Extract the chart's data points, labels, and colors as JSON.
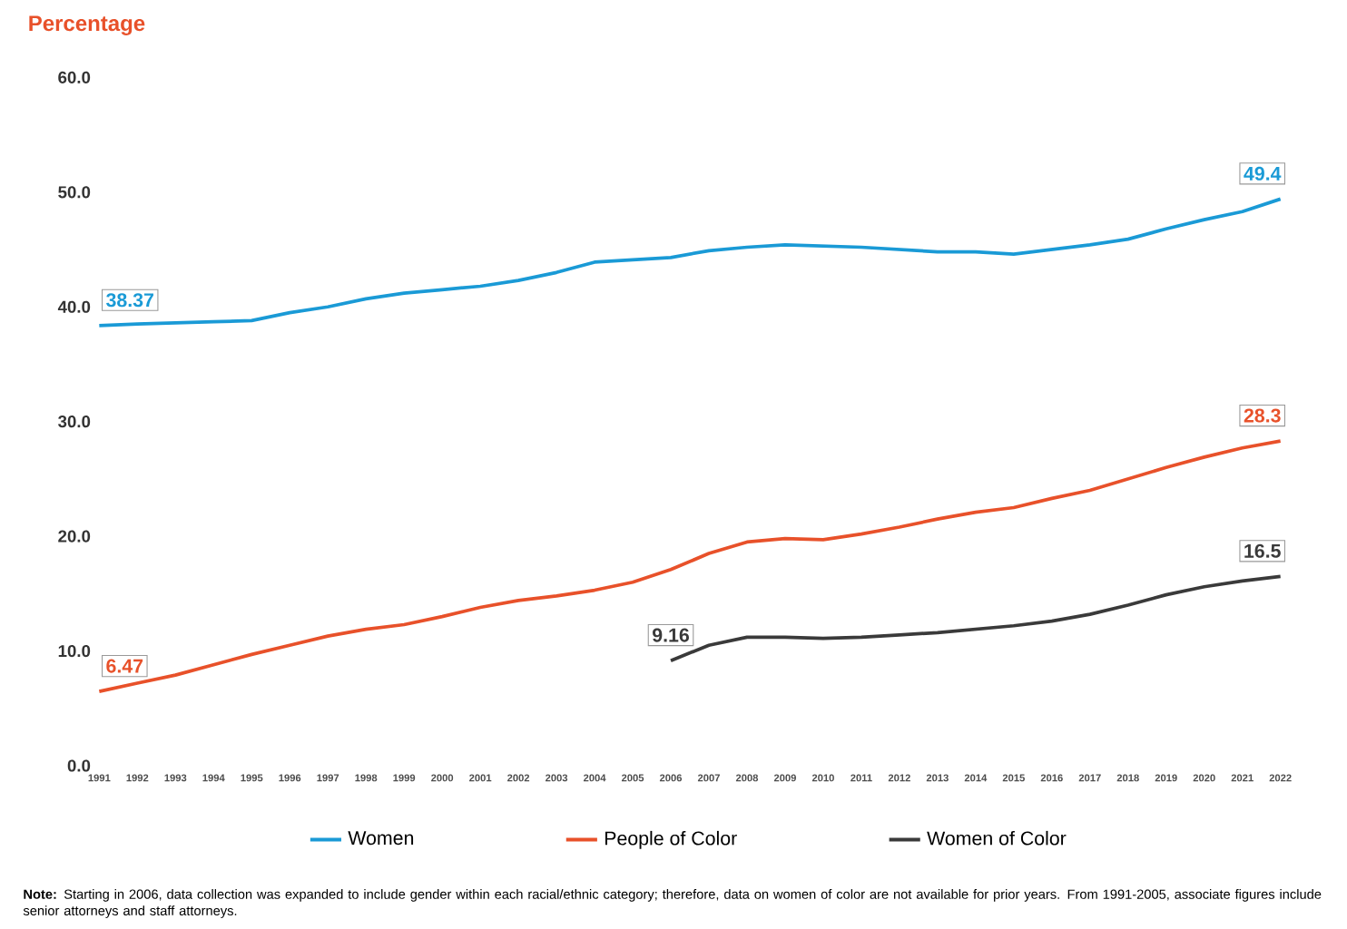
{
  "chart_data": {
    "type": "line",
    "ylabel": "Percentage",
    "categories": [
      "1991",
      "1992",
      "1993",
      "1994",
      "1995",
      "1996",
      "1997",
      "1998",
      "1999",
      "2000",
      "2001",
      "2002",
      "2003",
      "2004",
      "2005",
      "2006",
      "2007",
      "2008",
      "2009",
      "2010",
      "2011",
      "2012",
      "2013",
      "2014",
      "2015",
      "2016",
      "2017",
      "2018",
      "2019",
      "2020",
      "2021",
      "2022"
    ],
    "series": [
      {
        "name": "Women",
        "color": "#1a9ad6",
        "values": [
          38.37,
          38.5,
          38.6,
          38.7,
          38.8,
          39.5,
          40.0,
          40.7,
          41.2,
          41.5,
          41.8,
          42.3,
          43.0,
          43.9,
          44.1,
          44.3,
          44.9,
          45.2,
          45.4,
          45.3,
          45.2,
          45.0,
          44.8,
          44.8,
          44.6,
          45.0,
          45.4,
          45.9,
          46.8,
          47.6,
          48.3,
          49.4
        ],
        "value_labels": [
          "38.37",
          null,
          null,
          null,
          null,
          null,
          null,
          null,
          null,
          null,
          null,
          null,
          null,
          null,
          null,
          null,
          null,
          null,
          null,
          null,
          null,
          null,
          null,
          null,
          null,
          null,
          null,
          null,
          null,
          null,
          null,
          "49.4"
        ]
      },
      {
        "name": "People of Color",
        "color": "#e8512a",
        "values": [
          6.47,
          7.2,
          7.9,
          8.8,
          9.7,
          10.5,
          11.3,
          11.9,
          12.3,
          13.0,
          13.8,
          14.4,
          14.8,
          15.3,
          16.0,
          17.1,
          18.5,
          19.5,
          19.8,
          19.7,
          20.2,
          20.8,
          21.5,
          22.1,
          22.5,
          23.3,
          24.0,
          25.0,
          26.0,
          26.9,
          27.7,
          28.3
        ],
        "value_labels": [
          "6.47",
          null,
          null,
          null,
          null,
          null,
          null,
          null,
          null,
          null,
          null,
          null,
          null,
          null,
          null,
          null,
          null,
          null,
          null,
          null,
          null,
          null,
          null,
          null,
          null,
          null,
          null,
          null,
          null,
          null,
          null,
          "28.3"
        ]
      },
      {
        "name": "Women of Color",
        "color": "#3a3a3a",
        "values": [
          null,
          null,
          null,
          null,
          null,
          null,
          null,
          null,
          null,
          null,
          null,
          null,
          null,
          null,
          null,
          9.16,
          10.5,
          11.2,
          11.2,
          11.1,
          11.2,
          11.4,
          11.6,
          11.9,
          12.2,
          12.6,
          13.2,
          14.0,
          14.9,
          15.6,
          16.1,
          16.5
        ],
        "value_labels": [
          null,
          null,
          null,
          null,
          null,
          null,
          null,
          null,
          null,
          null,
          null,
          null,
          null,
          null,
          null,
          "9.16",
          null,
          null,
          null,
          null,
          null,
          null,
          null,
          null,
          null,
          null,
          null,
          null,
          null,
          null,
          null,
          "16.5"
        ]
      }
    ],
    "ylim": [
      0,
      60
    ],
    "yticks": [
      {
        "value": 0,
        "label": "0.0"
      },
      {
        "value": 10,
        "label": "10.0"
      },
      {
        "value": 20,
        "label": "20.0"
      },
      {
        "value": 30,
        "label": "30.0"
      },
      {
        "value": 40,
        "label": "40.0"
      },
      {
        "value": 50,
        "label": "50.0"
      },
      {
        "value": 60,
        "label": "60.0"
      }
    ],
    "grid": false,
    "legend": "bottom",
    "marker": "none",
    "line_style": "solid",
    "annotations": [
      "**Note:** Starting in 2006, data collection was expanded to include gender within each racial/ethnic category; therefore, data on women of color are not available for prior years. From 1991-2005, associate figures include senior attorneys and staff attorneys."
    ]
  }
}
